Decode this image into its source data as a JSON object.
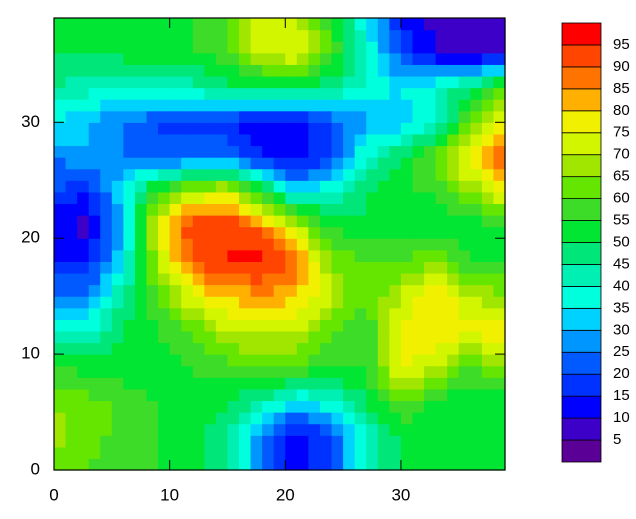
{
  "chart_data": {
    "type": "contour",
    "x": [
      0,
      3,
      6,
      9,
      12,
      15,
      18,
      21,
      24,
      27,
      30,
      33,
      36,
      39
    ],
    "y": [
      0,
      3,
      6,
      9,
      12,
      15,
      18,
      21,
      24,
      27,
      30,
      33,
      36,
      39
    ],
    "z": [
      [
        62,
        60,
        58,
        55,
        52,
        45,
        25,
        10,
        20,
        40,
        50,
        50,
        50,
        50
      ],
      [
        68,
        62,
        58,
        55,
        52,
        45,
        25,
        10,
        20,
        40,
        52,
        50,
        50,
        50
      ],
      [
        65,
        62,
        58,
        55,
        55,
        50,
        45,
        35,
        40,
        50,
        60,
        55,
        50,
        50
      ],
      [
        55,
        52,
        52,
        52,
        55,
        58,
        60,
        60,
        55,
        55,
        78,
        70,
        60,
        65
      ],
      [
        40,
        40,
        50,
        55,
        60,
        70,
        72,
        70,
        60,
        55,
        75,
        80,
        75,
        82
      ],
      [
        25,
        25,
        45,
        60,
        75,
        80,
        85,
        80,
        70,
        60,
        70,
        82,
        70,
        65
      ],
      [
        15,
        15,
        35,
        70,
        90,
        95,
        97,
        88,
        65,
        60,
        60,
        65,
        55,
        55
      ],
      [
        10,
        8,
        30,
        75,
        95,
        95,
        88,
        70,
        55,
        50,
        50,
        50,
        50,
        55
      ],
      [
        20,
        15,
        35,
        60,
        70,
        75,
        55,
        35,
        40,
        50,
        55,
        55,
        65,
        75
      ],
      [
        25,
        30,
        25,
        20,
        25,
        25,
        15,
        10,
        20,
        40,
        50,
        60,
        80,
        95
      ],
      [
        35,
        30,
        25,
        20,
        18,
        15,
        12,
        12,
        20,
        28,
        30,
        40,
        60,
        80
      ],
      [
        45,
        42,
        40,
        40,
        42,
        48,
        50,
        50,
        45,
        40,
        35,
        40,
        50,
        60
      ],
      [
        50,
        50,
        52,
        52,
        55,
        58,
        72,
        75,
        60,
        40,
        20,
        10,
        5,
        10
      ],
      [
        50,
        52,
        55,
        55,
        55,
        60,
        75,
        70,
        55,
        35,
        15,
        8,
        5,
        10
      ]
    ],
    "levels": [
      5,
      10,
      15,
      20,
      25,
      30,
      35,
      40,
      45,
      50,
      55,
      60,
      65,
      70,
      75,
      80,
      85,
      90,
      95
    ],
    "colors": [
      "#5a0096",
      "#3c00c8",
      "#0000ff",
      "#0032ff",
      "#005aff",
      "#0096ff",
      "#00d2ff",
      "#00ffdc",
      "#00f0b4",
      "#00e678",
      "#00e632",
      "#3cdc28",
      "#64e600",
      "#a0e600",
      "#d2f500",
      "#f0f000",
      "#ffb000",
      "#ff7300",
      "#ff4500",
      "#ff0000"
    ],
    "xlim": [
      0,
      39
    ],
    "ylim": [
      0,
      39
    ],
    "xticks": [
      0,
      10,
      20,
      30
    ],
    "yticks": [
      0,
      10,
      20,
      30
    ]
  }
}
